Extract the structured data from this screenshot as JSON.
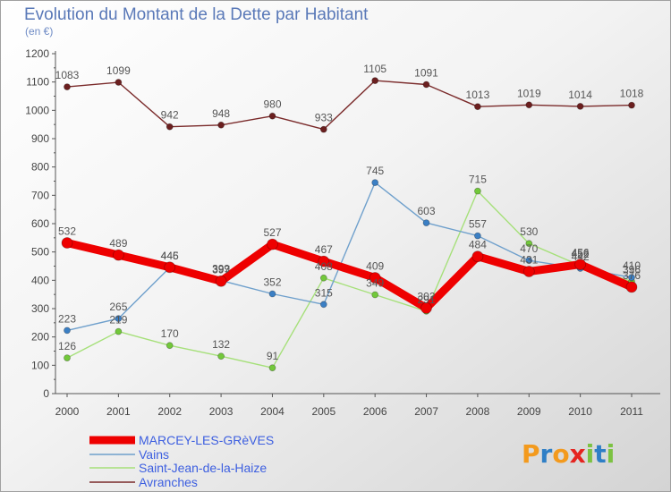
{
  "chart_data": {
    "type": "line",
    "title": "Evolution du Montant de la Dette par Habitant",
    "subtitle": "(en €)",
    "x": [
      "2000",
      "2001",
      "2002",
      "2003",
      "2004",
      "2005",
      "2006",
      "2007",
      "2008",
      "2009",
      "2010",
      "2011"
    ],
    "ylim": [
      0,
      1200
    ],
    "yticks": [
      0,
      100,
      200,
      300,
      400,
      500,
      600,
      700,
      800,
      900,
      1000,
      1100,
      1200
    ],
    "grid": false,
    "legend": "bottom-left",
    "series": [
      {
        "name": "MARCEY-LES-GRèVES",
        "color": "#ee0000",
        "marker_color": "#ee0000",
        "values": [
          532,
          489,
          446,
          397,
          527,
          467,
          409,
          302,
          484,
          431,
          456,
          376
        ]
      },
      {
        "name": "Vains",
        "color": "#6fa0cc",
        "marker_color": "#3b7fc4",
        "values": [
          223,
          265,
          445,
          399,
          352,
          315,
          745,
          603,
          557,
          470,
          442,
          410
        ]
      },
      {
        "name": "Saint-Jean-de-la-Haize",
        "color": "#a6e07a",
        "marker_color": "#72c83a",
        "values": [
          126,
          219,
          170,
          132,
          91,
          408,
          349,
          291,
          715,
          530,
          452,
          396
        ]
      },
      {
        "name": "Avranches",
        "color": "#7a2a2a",
        "marker_color": "#6b1f1f",
        "values": [
          1083,
          1099,
          942,
          948,
          980,
          933,
          1105,
          1091,
          1013,
          1019,
          1014,
          1018
        ]
      }
    ]
  },
  "logo": {
    "letters": [
      {
        "char": "P",
        "color": "#f39a1d"
      },
      {
        "char": "r",
        "color": "#2f7fc6"
      },
      {
        "char": "o",
        "color": "#f39a1d"
      },
      {
        "char": "x",
        "color": "#e52420"
      },
      {
        "char": "i",
        "color": "#7cc242"
      },
      {
        "char": "t",
        "color": "#2f7fc6"
      },
      {
        "char": "i",
        "color": "#7cc242"
      }
    ]
  }
}
